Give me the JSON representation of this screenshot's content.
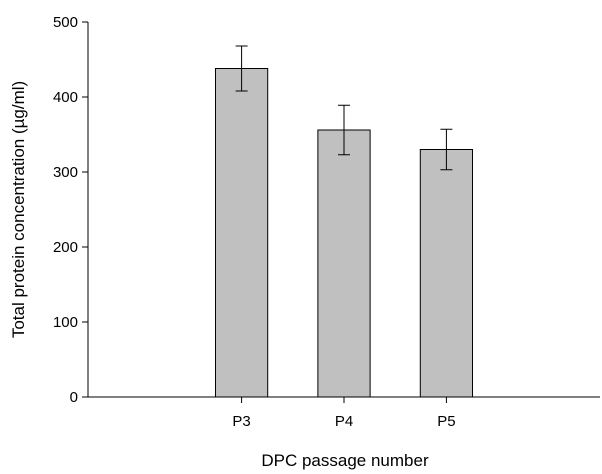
{
  "chart_data": {
    "type": "bar",
    "title": "",
    "xlabel": "DPC passage number",
    "ylabel": "Total protein concentration (µg/ml)",
    "categories": [
      "P3",
      "P4",
      "P5"
    ],
    "values": [
      438,
      356,
      330
    ],
    "error_bars": [
      30,
      33,
      27
    ],
    "ylim": [
      0,
      500
    ],
    "yticks": [
      0,
      100,
      200,
      300,
      400,
      500
    ],
    "ytick_labels": [
      "0",
      "100",
      "200",
      "300",
      "400",
      "500"
    ],
    "x_slots": 5,
    "grid": false,
    "legend": "none",
    "bar_color": "#c0c0c0",
    "edge_color": "#000000"
  }
}
